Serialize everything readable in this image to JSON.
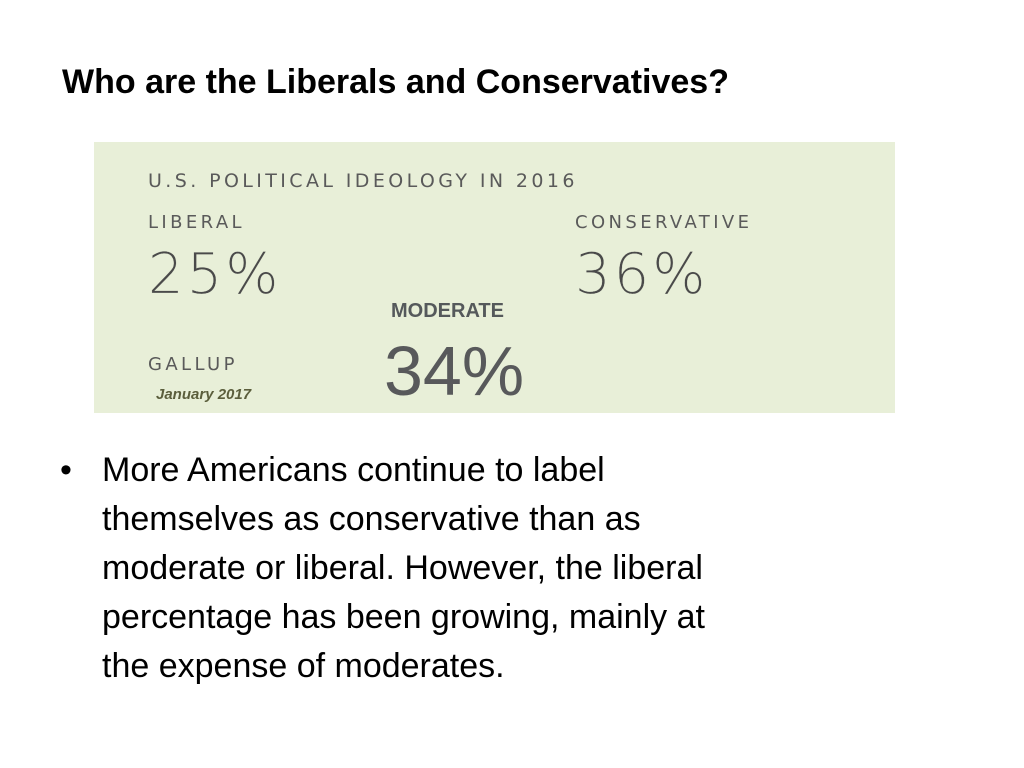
{
  "slide": {
    "title": "Who are the Liberals and Conservatives?"
  },
  "infographic": {
    "heading": "U.S. POLITICAL IDEOLOGY IN 2016",
    "liberal_label": "LIBERAL",
    "liberal_value": "25%",
    "conservative_label": "CONSERVATIVE",
    "conservative_value": "36%",
    "moderate_label": "MODERATE",
    "moderate_value": "34%",
    "source": "GALLUP",
    "date": "January 2017",
    "background_color": "#e8efd8"
  },
  "bullets": [
    {
      "marker": "•",
      "lines": [
        "More Americans continue to label",
        "themselves as conservative than as",
        "moderate or liberal. However, the liberal",
        "percentage has been growing, mainly at",
        "the expense of moderates."
      ]
    }
  ]
}
